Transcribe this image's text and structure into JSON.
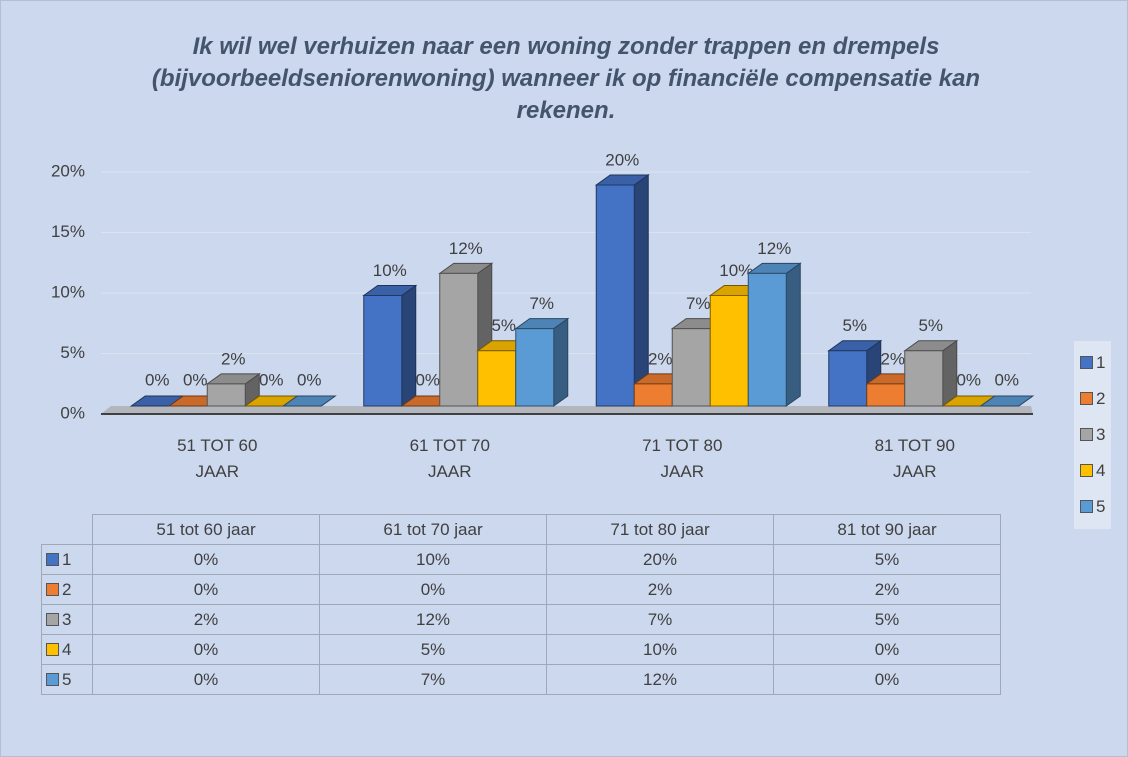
{
  "chart_data": {
    "type": "bar3d",
    "title": "Ik wil wel verhuizen naar een woning zonder trappen en drempels (bijvoorbeeldseniorenwoning) wanneer ik op financiële compensatie kan rekenen.",
    "categories": [
      "51 TOT 60 JAAR",
      "61 TOT 70 JAAR",
      "71 TOT 80 JAAR",
      "81 TOT 90 JAAR"
    ],
    "series": [
      {
        "name": "1",
        "color": "#4472c4",
        "values": [
          0,
          10,
          20,
          5
        ],
        "value_labels": [
          "0%",
          "10%",
          "20%",
          "5%"
        ]
      },
      {
        "name": "2",
        "color": "#ed7d31",
        "values": [
          0,
          0,
          2,
          2
        ],
        "value_labels": [
          "0%",
          "0%",
          "2%",
          "2%"
        ]
      },
      {
        "name": "3",
        "color": "#a5a5a5",
        "values": [
          2,
          12,
          7,
          5
        ],
        "value_labels": [
          "2%",
          "12%",
          "7%",
          "5%"
        ]
      },
      {
        "name": "4",
        "color": "#ffc000",
        "values": [
          0,
          5,
          10,
          0
        ],
        "value_labels": [
          "0%",
          "5%",
          "10%",
          "0%"
        ]
      },
      {
        "name": "5",
        "color": "#5b9bd5",
        "values": [
          0,
          7,
          12,
          0
        ],
        "value_labels": [
          "0%",
          "7%",
          "12%",
          "0%"
        ]
      }
    ],
    "ylim": [
      0,
      20
    ],
    "yticks": [
      {
        "value": 0,
        "label": "0%"
      },
      {
        "value": 5,
        "label": "5%"
      },
      {
        "value": 10,
        "label": "10%"
      },
      {
        "value": 15,
        "label": "15%"
      },
      {
        "value": 20,
        "label": "20%"
      }
    ],
    "grid": true,
    "legend": "right",
    "table": {
      "columns": [
        "51 tot 60 jaar",
        "61 tot 70 jaar",
        "71 tot 80 jaar",
        "81 tot 90 jaar"
      ]
    }
  }
}
